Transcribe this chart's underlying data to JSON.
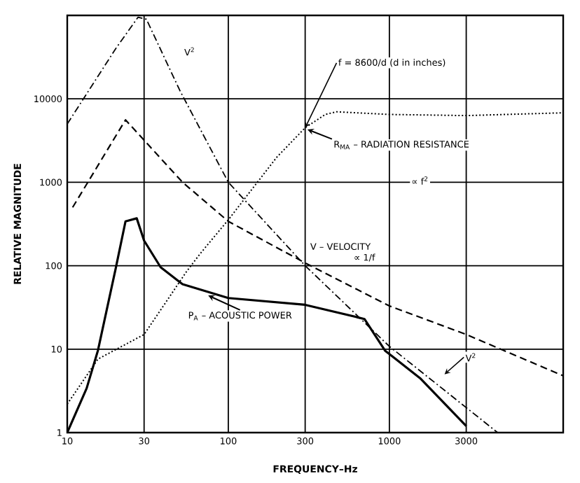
{
  "chart_data": {
    "type": "line",
    "xlabel": "FREQUENCY–Hz",
    "ylabel": "RELATIVE MAGNITUDE",
    "log": "xy",
    "grid": true,
    "xlim": [
      10,
      12000
    ],
    "ylim": [
      1,
      100000
    ],
    "xticks": [
      10,
      30,
      100,
      300,
      1000,
      3000
    ],
    "yticks": [
      1,
      10,
      100,
      1000,
      10000
    ],
    "series": [
      {
        "name": "V$^{2}$",
        "color": "#000000",
        "line_style": "dashdot",
        "x": [
          10,
          20,
          27.5,
          31,
          50,
          100,
          300,
          1000,
          4700
        ],
        "values": [
          5000,
          40000,
          95000,
          90000,
          12600,
          1000,
          100,
          10.8,
          1
        ]
      },
      {
        "name": "V – VELOCITY",
        "color": "#000000",
        "line_style": "dashed",
        "x": [
          10.8,
          23,
          52,
          100,
          300,
          1000,
          3000,
          12000
        ],
        "values": [
          500,
          5600,
          1000,
          340,
          108,
          33,
          15,
          4.8
        ]
      },
      {
        "name": "R$_{MA}$ – RADIATION RESISTANCE",
        "color": "#000000",
        "line_style": "dotted",
        "x": [
          10,
          15.5,
          30,
          55,
          67,
          100,
          200,
          300,
          400,
          470,
          1000,
          3000,
          12000
        ],
        "values": [
          2.2,
          7.6,
          15,
          85,
          140,
          355,
          2000,
          4500,
          6500,
          7000,
          6500,
          6300,
          6800
        ]
      },
      {
        "name": "P$_{A}$ – ACOUSTIC POWER",
        "color": "#000000",
        "line_style": "solid",
        "x": [
          10,
          13.2,
          15.5,
          20,
          23,
          27,
          30,
          38,
          52,
          100,
          300,
          700,
          940,
          1550,
          3000
        ],
        "values": [
          1,
          3.4,
          9.6,
          93,
          340,
          370,
          200,
          96,
          60,
          41,
          34,
          23,
          9.6,
          4.5,
          1.2
        ]
      }
    ],
    "annotations": [
      {
        "text": "f = 8600/d (d in inches)",
        "x": 300,
        "y": 4500
      },
      "∝ f$^{2}$",
      "∝ 1/f",
      "V$^{2}$"
    ]
  }
}
